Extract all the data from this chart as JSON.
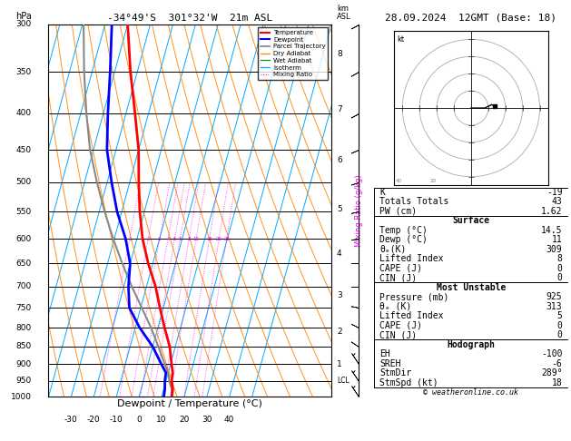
{
  "title_left": "-34°49'S  301°32'W  21m ASL",
  "title_right": "28.09.2024  12GMT (Base: 18)",
  "xlabel": "Dewpoint / Temperature (°C)",
  "ylabel_left": "hPa",
  "pressure_ticks": [
    300,
    350,
    400,
    450,
    500,
    550,
    600,
    650,
    700,
    750,
    800,
    850,
    900,
    950,
    1000
  ],
  "temp_bottom_ticks": [
    -30,
    -20,
    -10,
    0,
    10,
    20,
    30,
    40
  ],
  "isotherm_color": "#00aaff",
  "dry_adiabat_color": "#ff8800",
  "wet_adiabat_color": "#009900",
  "mixing_ratio_color": "#ff00ff",
  "mixing_ratio_values": [
    1,
    2,
    3,
    4,
    5,
    6,
    8,
    10,
    15,
    20,
    25
  ],
  "temperature_profile_pressure": [
    1000,
    975,
    950,
    925,
    900,
    850,
    800,
    750,
    700,
    650,
    600,
    550,
    500,
    450,
    400,
    350,
    300
  ],
  "temperature_profile_temp": [
    14.5,
    14.0,
    12.5,
    12.0,
    10.5,
    7.5,
    3.0,
    -1.5,
    -6.0,
    -12.0,
    -17.5,
    -22.0,
    -26.0,
    -30.0,
    -36.0,
    -43.0,
    -50.0
  ],
  "dewpoint_profile_pressure": [
    1000,
    975,
    950,
    925,
    900,
    850,
    800,
    750,
    700,
    650,
    600,
    550,
    500,
    450,
    400,
    350,
    300
  ],
  "dewpoint_profile_dewp": [
    11.0,
    10.5,
    9.5,
    9.0,
    6.0,
    0.0,
    -8.0,
    -15.0,
    -18.0,
    -20.0,
    -25.0,
    -32.0,
    -38.0,
    -44.0,
    -48.0,
    -52.0,
    -57.0
  ],
  "parcel_profile_pressure": [
    1000,
    975,
    950,
    925,
    900,
    850,
    800,
    750,
    700,
    650,
    600,
    550,
    500,
    450,
    400,
    350,
    300
  ],
  "parcel_profile_temp": [
    14.5,
    13.5,
    11.5,
    10.0,
    7.5,
    2.5,
    -3.0,
    -9.5,
    -16.5,
    -23.5,
    -30.5,
    -37.5,
    -44.5,
    -51.5,
    -57.5,
    -63.5,
    -69.5
  ],
  "lcl_pressure": 950,
  "temperature_color": "#ff0000",
  "dewpoint_color": "#0000ff",
  "parcel_color": "#888888",
  "km_levels": {
    "8": 330,
    "7": 395,
    "6": 465,
    "5": 545,
    "4": 630,
    "3": 720,
    "2": 810,
    "1": 900
  },
  "stats_K": -19,
  "stats_TT": 43,
  "stats_PW": 1.62,
  "stats_surf_temp": 14.5,
  "stats_surf_dewp": 11,
  "stats_surf_theta_e": 309,
  "stats_surf_li": 8,
  "stats_surf_cape": 0,
  "stats_surf_cin": 0,
  "stats_mu_pres": 925,
  "stats_mu_theta_e": 313,
  "stats_mu_li": 5,
  "stats_mu_cape": 0,
  "stats_mu_cin": 0,
  "stats_eh": -100,
  "stats_sreh": -6,
  "stats_stmdir": 289,
  "stats_stmspd": 18
}
